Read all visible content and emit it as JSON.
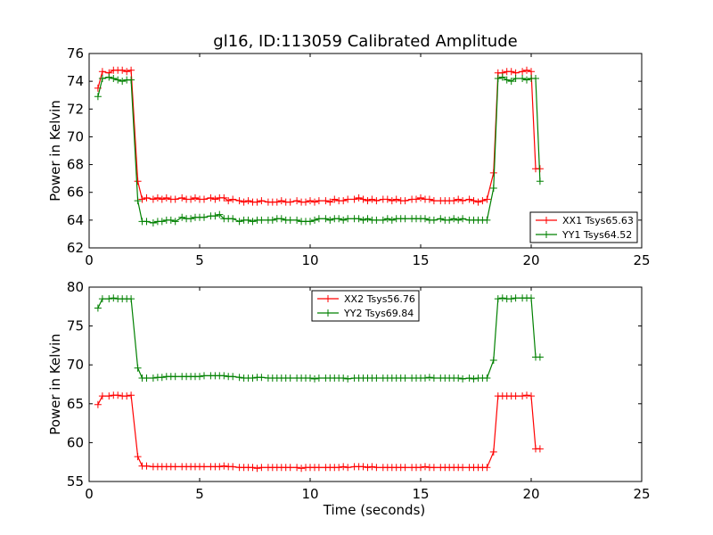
{
  "title": "gl16, ID:113059 Calibrated Amplitude",
  "colors": {
    "red": "#ff0000",
    "green": "#008000"
  },
  "chart_data": [
    {
      "type": "line",
      "xlabel": "",
      "ylabel": "Power in Kelvin",
      "xlim": [
        0,
        25
      ],
      "ylim": [
        62,
        76
      ],
      "xticks": [
        0,
        5,
        10,
        15,
        20,
        25
      ],
      "yticks": [
        62,
        64,
        66,
        68,
        70,
        72,
        74,
        76
      ],
      "legend_position": "lower-right",
      "grid": false,
      "x": [
        0.4,
        0.6,
        0.9,
        1.1,
        1.3,
        1.5,
        1.7,
        1.9,
        2.2,
        2.4,
        2.6,
        2.9,
        3.1,
        3.3,
        3.5,
        3.7,
        3.9,
        4.2,
        4.4,
        4.6,
        4.8,
        5.0,
        5.2,
        5.5,
        5.7,
        5.9,
        6.1,
        6.3,
        6.5,
        6.8,
        7.0,
        7.2,
        7.4,
        7.6,
        7.8,
        8.1,
        8.3,
        8.5,
        8.7,
        8.9,
        9.1,
        9.4,
        9.6,
        9.8,
        10.0,
        10.2,
        10.4,
        10.7,
        10.9,
        11.1,
        11.3,
        11.5,
        11.7,
        12.0,
        12.2,
        12.4,
        12.6,
        12.8,
        13.0,
        13.3,
        13.5,
        13.7,
        13.9,
        14.1,
        14.3,
        14.6,
        14.8,
        15.0,
        15.2,
        15.4,
        15.6,
        15.9,
        16.1,
        16.3,
        16.5,
        16.7,
        16.9,
        17.2,
        17.4,
        17.6,
        17.8,
        18.0,
        18.3,
        18.5,
        18.7,
        18.9,
        19.1,
        19.3,
        19.6,
        19.8,
        20.0,
        20.2,
        20.4
      ],
      "series": [
        {
          "name": "XX1 Tsys65.63",
          "color": "#ff0000",
          "values": [
            73.5,
            74.7,
            74.6,
            74.8,
            74.8,
            74.8,
            74.7,
            74.8,
            66.8,
            65.5,
            65.6,
            65.5,
            65.6,
            65.5,
            65.6,
            65.5,
            65.5,
            65.6,
            65.5,
            65.5,
            65.6,
            65.5,
            65.5,
            65.6,
            65.5,
            65.6,
            65.6,
            65.4,
            65.5,
            65.4,
            65.3,
            65.4,
            65.3,
            65.3,
            65.4,
            65.3,
            65.3,
            65.3,
            65.4,
            65.3,
            65.3,
            65.4,
            65.3,
            65.3,
            65.4,
            65.3,
            65.4,
            65.4,
            65.3,
            65.5,
            65.4,
            65.4,
            65.5,
            65.5,
            65.6,
            65.5,
            65.4,
            65.5,
            65.4,
            65.5,
            65.5,
            65.4,
            65.5,
            65.4,
            65.4,
            65.5,
            65.5,
            65.6,
            65.5,
            65.5,
            65.4,
            65.4,
            65.4,
            65.4,
            65.4,
            65.5,
            65.4,
            65.5,
            65.4,
            65.3,
            65.4,
            65.5,
            67.4,
            74.6,
            74.6,
            74.7,
            74.7,
            74.6,
            74.7,
            74.8,
            74.7,
            67.7,
            67.7
          ]
        },
        {
          "name": "YY1 Tsys64.52",
          "color": "#008000",
          "values": [
            72.9,
            74.2,
            74.3,
            74.2,
            74.1,
            74.0,
            74.1,
            74.1,
            65.4,
            63.9,
            63.9,
            63.8,
            63.9,
            63.9,
            64.0,
            64.0,
            63.9,
            64.2,
            64.1,
            64.1,
            64.2,
            64.2,
            64.2,
            64.3,
            64.3,
            64.4,
            64.1,
            64.1,
            64.1,
            63.9,
            64.0,
            64.0,
            63.9,
            64.0,
            64.0,
            64.0,
            64.0,
            64.1,
            64.1,
            64.0,
            64.0,
            64.0,
            63.9,
            63.9,
            63.9,
            64.0,
            64.1,
            64.1,
            64.0,
            64.1,
            64.1,
            64.0,
            64.1,
            64.1,
            64.1,
            64.0,
            64.1,
            64.0,
            64.0,
            64.0,
            64.1,
            64.0,
            64.1,
            64.1,
            64.1,
            64.1,
            64.1,
            64.1,
            64.1,
            64.0,
            64.0,
            64.1,
            64.0,
            64.0,
            64.1,
            64.0,
            64.1,
            64.0,
            64.0,
            64.0,
            64.0,
            64.0,
            66.3,
            74.2,
            74.3,
            74.1,
            74.0,
            74.2,
            74.2,
            74.1,
            74.2,
            74.2,
            66.8
          ]
        }
      ]
    },
    {
      "type": "line",
      "xlabel": "Time (seconds)",
      "ylabel": "Power in Kelvin",
      "xlim": [
        0,
        25
      ],
      "ylim": [
        55,
        80
      ],
      "xticks": [
        0,
        5,
        10,
        15,
        20,
        25
      ],
      "yticks": [
        55,
        60,
        65,
        70,
        75,
        80
      ],
      "legend_position": "upper-center",
      "grid": false,
      "x": [
        0.4,
        0.6,
        0.9,
        1.1,
        1.3,
        1.5,
        1.7,
        1.9,
        2.2,
        2.4,
        2.6,
        2.9,
        3.1,
        3.3,
        3.5,
        3.7,
        3.9,
        4.2,
        4.4,
        4.6,
        4.8,
        5.0,
        5.2,
        5.5,
        5.7,
        5.9,
        6.1,
        6.3,
        6.5,
        6.8,
        7.0,
        7.2,
        7.4,
        7.6,
        7.8,
        8.1,
        8.3,
        8.5,
        8.7,
        8.9,
        9.1,
        9.4,
        9.6,
        9.8,
        10.0,
        10.2,
        10.4,
        10.7,
        10.9,
        11.1,
        11.3,
        11.5,
        11.7,
        12.0,
        12.2,
        12.4,
        12.6,
        12.8,
        13.0,
        13.3,
        13.5,
        13.7,
        13.9,
        14.1,
        14.3,
        14.6,
        14.8,
        15.0,
        15.2,
        15.4,
        15.6,
        15.9,
        16.1,
        16.3,
        16.5,
        16.7,
        16.9,
        17.2,
        17.4,
        17.6,
        17.8,
        18.0,
        18.3,
        18.5,
        18.7,
        18.9,
        19.1,
        19.3,
        19.6,
        19.8,
        20.0,
        20.2,
        20.4
      ],
      "series": [
        {
          "name": "XX2 Tsys56.76",
          "color": "#ff0000",
          "values": [
            64.9,
            66.0,
            66.0,
            66.1,
            66.1,
            66.0,
            66.0,
            66.1,
            58.2,
            57.0,
            57.0,
            56.9,
            56.9,
            56.9,
            56.9,
            56.9,
            56.9,
            56.9,
            56.9,
            56.9,
            56.9,
            56.9,
            56.9,
            56.9,
            56.9,
            56.9,
            57.0,
            56.9,
            56.9,
            56.8,
            56.8,
            56.8,
            56.8,
            56.7,
            56.8,
            56.8,
            56.8,
            56.8,
            56.8,
            56.8,
            56.8,
            56.8,
            56.7,
            56.8,
            56.8,
            56.8,
            56.8,
            56.8,
            56.8,
            56.8,
            56.8,
            56.9,
            56.8,
            56.9,
            56.9,
            56.9,
            56.8,
            56.9,
            56.8,
            56.8,
            56.8,
            56.8,
            56.8,
            56.8,
            56.8,
            56.8,
            56.8,
            56.8,
            56.9,
            56.8,
            56.8,
            56.8,
            56.8,
            56.8,
            56.8,
            56.8,
            56.8,
            56.8,
            56.8,
            56.8,
            56.8,
            56.8,
            58.8,
            66.0,
            66.0,
            66.0,
            66.0,
            66.0,
            66.0,
            66.1,
            66.0,
            59.2,
            59.2
          ]
        },
        {
          "name": "YY2 Tsys69.84",
          "color": "#008000",
          "values": [
            77.3,
            78.5,
            78.5,
            78.6,
            78.5,
            78.5,
            78.5,
            78.5,
            69.6,
            68.3,
            68.3,
            68.3,
            68.4,
            68.4,
            68.5,
            68.5,
            68.5,
            68.5,
            68.5,
            68.5,
            68.5,
            68.5,
            68.6,
            68.6,
            68.6,
            68.6,
            68.6,
            68.5,
            68.5,
            68.4,
            68.3,
            68.3,
            68.3,
            68.4,
            68.4,
            68.3,
            68.3,
            68.3,
            68.3,
            68.3,
            68.3,
            68.3,
            68.3,
            68.3,
            68.3,
            68.2,
            68.3,
            68.3,
            68.3,
            68.3,
            68.3,
            68.3,
            68.2,
            68.3,
            68.3,
            68.3,
            68.3,
            68.3,
            68.3,
            68.3,
            68.3,
            68.3,
            68.3,
            68.3,
            68.3,
            68.3,
            68.3,
            68.3,
            68.3,
            68.4,
            68.3,
            68.3,
            68.3,
            68.3,
            68.3,
            68.3,
            68.2,
            68.3,
            68.2,
            68.3,
            68.3,
            68.3,
            70.6,
            78.5,
            78.6,
            78.5,
            78.5,
            78.6,
            78.6,
            78.6,
            78.6,
            71.0,
            71.0
          ]
        }
      ]
    }
  ]
}
